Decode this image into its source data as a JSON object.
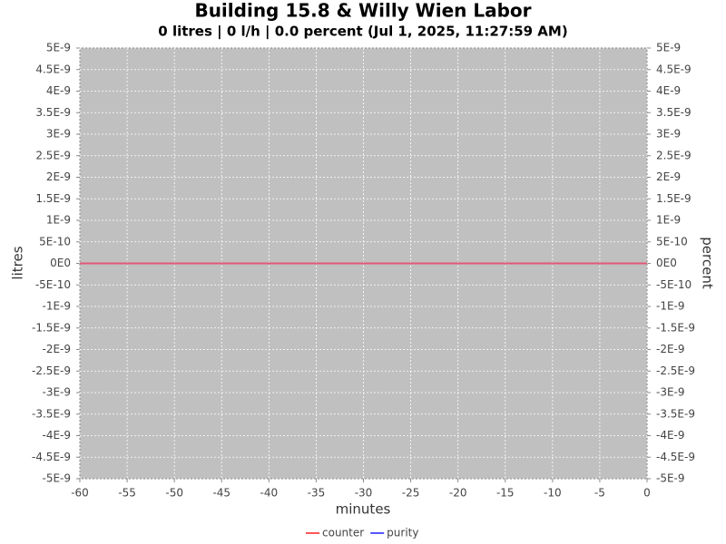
{
  "chart_data": {
    "type": "line",
    "title": "Building 15.8 & Willy Wien Labor",
    "subtitle": "0 litres | 0 l/h | 0.0 percent (Jul 1, 2025, 11:27:59 AM)",
    "x_label": "minutes",
    "y_label": "litres",
    "y2_label": "percent",
    "x": [
      -60,
      0
    ],
    "series": [
      {
        "name": "counter",
        "color": "#ff5555",
        "values": [
          0,
          0
        ]
      },
      {
        "name": "purity",
        "color": "#5555ff",
        "values": [
          0,
          0
        ],
        "axis": "y2"
      }
    ],
    "xlim": [
      -60,
      0
    ],
    "xticks": [
      -60,
      -55,
      -50,
      -45,
      -40,
      -35,
      -30,
      -25,
      -20,
      -15,
      -10,
      -5,
      0
    ],
    "ylim": [
      -5e-09,
      5e-09
    ],
    "yticks": [
      {
        "value": 5e-09,
        "label": "5E-9"
      },
      {
        "value": 4.5e-09,
        "label": "4.5E-9"
      },
      {
        "value": 4e-09,
        "label": "4E-9"
      },
      {
        "value": 3.5e-09,
        "label": "3.5E-9"
      },
      {
        "value": 3e-09,
        "label": "3E-9"
      },
      {
        "value": 2.5e-09,
        "label": "2.5E-9"
      },
      {
        "value": 2e-09,
        "label": "2E-9"
      },
      {
        "value": 1.5e-09,
        "label": "1.5E-9"
      },
      {
        "value": 1e-09,
        "label": "1E-9"
      },
      {
        "value": 5e-10,
        "label": "5E-10"
      },
      {
        "value": 0,
        "label": "0E0"
      },
      {
        "value": -5e-10,
        "label": "-5E-10"
      },
      {
        "value": -1e-09,
        "label": "-1E-9"
      },
      {
        "value": -1.5e-09,
        "label": "-1.5E-9"
      },
      {
        "value": -2e-09,
        "label": "-2E-9"
      },
      {
        "value": -2.5e-09,
        "label": "-2.5E-9"
      },
      {
        "value": -3e-09,
        "label": "-3E-9"
      },
      {
        "value": -3.5e-09,
        "label": "-3.5E-9"
      },
      {
        "value": -4e-09,
        "label": "-4E-9"
      },
      {
        "value": -4.5e-09,
        "label": "-4.5E-9"
      },
      {
        "value": -5e-09,
        "label": "-5E-9"
      }
    ],
    "y2lim": [
      -5e-09,
      5e-09
    ],
    "y2ticks": [
      {
        "value": 5e-09,
        "label": "5E-9"
      },
      {
        "value": 4.5e-09,
        "label": "4.5E-9"
      },
      {
        "value": 4e-09,
        "label": "4E-9"
      },
      {
        "value": 3.5e-09,
        "label": "3.5E-9"
      },
      {
        "value": 3e-09,
        "label": "3E-9"
      },
      {
        "value": 2.5e-09,
        "label": "2.5E-9"
      },
      {
        "value": 2e-09,
        "label": "2E-9"
      },
      {
        "value": 1.5e-09,
        "label": "1.5E-9"
      },
      {
        "value": 1e-09,
        "label": "1E-9"
      },
      {
        "value": 5e-10,
        "label": "5E-10"
      },
      {
        "value": 0,
        "label": "0E0"
      },
      {
        "value": -5e-10,
        "label": "-5E-10"
      },
      {
        "value": -1e-09,
        "label": "-1E-9"
      },
      {
        "value": -1.5e-09,
        "label": "-1.5E-9"
      },
      {
        "value": -2e-09,
        "label": "-2E-9"
      },
      {
        "value": -2.5e-09,
        "label": "-2.5E-9"
      },
      {
        "value": -3e-09,
        "label": "-3E-9"
      },
      {
        "value": -3.5e-09,
        "label": "-3.5E-9"
      },
      {
        "value": -4e-09,
        "label": "-4E-9"
      },
      {
        "value": -4.5e-09,
        "label": "-4.5E-9"
      },
      {
        "value": -5e-09,
        "label": "-5E-9"
      }
    ],
    "grid": true
  }
}
